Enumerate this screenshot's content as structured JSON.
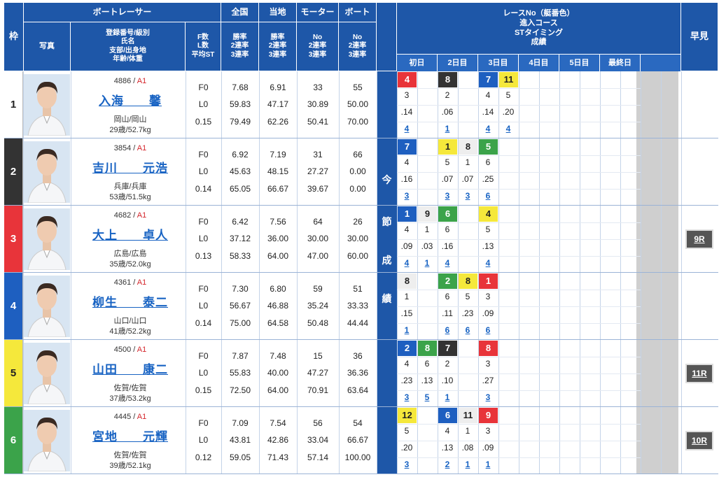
{
  "header": {
    "waku": "枠",
    "racer": "ボートレーサー",
    "photo": "写真",
    "profile": [
      "登録番号/級別",
      "氏名",
      "支部/出身地",
      "年齢/体重"
    ],
    "fl": [
      "F数",
      "L数",
      "平均ST"
    ],
    "zenkoku": "全国",
    "touchi": "当地",
    "motor": "モーター",
    "boat": "ボート",
    "rate3": [
      "勝率",
      "2連率",
      "3連率"
    ],
    "rateNo": [
      "No",
      "2連率",
      "3連率"
    ],
    "race_info": [
      "レースNo（艇番色）",
      "進入コース",
      "STタイミング",
      "成績"
    ],
    "days": [
      "初日",
      "2日目",
      "3日目",
      "4日目",
      "5日目",
      "最終日"
    ],
    "hayami": "早見",
    "konsetsu": [
      "今",
      "節",
      "成",
      "績"
    ]
  },
  "colors": {
    "header": "#1e57a8",
    "lane": [
      "#ffffff",
      "#333333",
      "#e8343a",
      "#1e5fc0",
      "#f5e83b",
      "#3ba34a"
    ]
  },
  "racers": [
    {
      "waku": "1",
      "reg": "4886",
      "class": "A1",
      "name": "入海　　馨",
      "area": "岡山/岡山",
      "age": "29歳/52.7kg",
      "f": "F0",
      "l": "L0",
      "st": "0.15",
      "zen": [
        "7.68",
        "59.83",
        "79.49"
      ],
      "tou": [
        "6.91",
        "47.17",
        "62.26"
      ],
      "motor": [
        "33",
        "30.89",
        "50.41"
      ],
      "boat": [
        "55",
        "50.00",
        "70.00"
      ],
      "hayami": ""
    },
    {
      "waku": "2",
      "reg": "3854",
      "class": "A1",
      "name": "吉川　　元浩",
      "area": "兵庫/兵庫",
      "age": "53歳/51.5kg",
      "f": "F0",
      "l": "L0",
      "st": "0.14",
      "zen": [
        "6.92",
        "45.63",
        "65.05"
      ],
      "tou": [
        "7.19",
        "48.15",
        "66.67"
      ],
      "motor": [
        "31",
        "27.27",
        "39.67"
      ],
      "boat": [
        "66",
        "0.00",
        "0.00"
      ],
      "hayami": ""
    },
    {
      "waku": "3",
      "reg": "4682",
      "class": "A1",
      "name": "大上　　卓人",
      "area": "広島/広島",
      "age": "35歳/52.0kg",
      "f": "F0",
      "l": "L0",
      "st": "0.13",
      "zen": [
        "6.42",
        "37.12",
        "58.33"
      ],
      "tou": [
        "7.56",
        "36.00",
        "64.00"
      ],
      "motor": [
        "64",
        "30.00",
        "47.00"
      ],
      "boat": [
        "26",
        "30.00",
        "60.00"
      ],
      "hayami": "9R"
    },
    {
      "waku": "4",
      "reg": "4361",
      "class": "A1",
      "name": "柳生　　泰二",
      "area": "山口/山口",
      "age": "41歳/52.2kg",
      "f": "F0",
      "l": "L0",
      "st": "0.14",
      "zen": [
        "7.30",
        "56.67",
        "75.00"
      ],
      "tou": [
        "6.80",
        "46.88",
        "64.58"
      ],
      "motor": [
        "59",
        "35.24",
        "50.48"
      ],
      "boat": [
        "51",
        "33.33",
        "44.44"
      ],
      "hayami": ""
    },
    {
      "waku": "5",
      "reg": "4500",
      "class": "A1",
      "name": "山田　　康二",
      "area": "佐賀/佐賀",
      "age": "37歳/53.2kg",
      "f": "F0",
      "l": "L0",
      "st": "0.15",
      "zen": [
        "7.87",
        "55.83",
        "72.50"
      ],
      "tou": [
        "7.48",
        "40.00",
        "64.00"
      ],
      "motor": [
        "15",
        "47.27",
        "70.91"
      ],
      "boat": [
        "36",
        "36.36",
        "63.64"
      ],
      "hayami": "11R"
    },
    {
      "waku": "6",
      "reg": "4445",
      "class": "A1",
      "name": "宮地　　元輝",
      "area": "佐賀/佐賀",
      "age": "39歳/52.1kg",
      "f": "F0",
      "l": "L0",
      "st": "0.12",
      "zen": [
        "7.09",
        "43.81",
        "59.05"
      ],
      "tou": [
        "7.54",
        "42.86",
        "71.43"
      ],
      "motor": [
        "56",
        "33.04",
        "57.14"
      ],
      "boat": [
        "54",
        "66.67",
        "100.00"
      ],
      "hayami": "10R"
    }
  ],
  "results": [
    [
      {
        "s": 0,
        "r": "4",
        "c": 3,
        "st": ".14",
        "p": "4"
      },
      {
        "s": 2,
        "r": "8",
        "c": 2,
        "st": ".06",
        "p": "1"
      },
      {
        "s": 4,
        "r": "7",
        "c": 4,
        "st": ".14",
        "p": "4"
      },
      {
        "s": 5,
        "r": "11",
        "c": 5,
        "st": ".20",
        "p": "4"
      }
    ],
    [
      {
        "s": 0,
        "r": "7",
        "c": 4,
        "st": ".16",
        "p": "3"
      },
      {
        "s": 2,
        "r": "1",
        "c": 5,
        "st": ".07",
        "p": "3"
      },
      {
        "s": 3,
        "r": "8",
        "c": 1,
        "st": ".07",
        "p": "3"
      },
      {
        "s": 4,
        "r": "5",
        "c": 6,
        "st": ".25",
        "p": "6"
      }
    ],
    [
      {
        "s": 0,
        "r": "1",
        "c": 4,
        "st": ".09",
        "p": "4"
      },
      {
        "s": 1,
        "r": "9",
        "c": 1,
        "st": ".03",
        "p": "1"
      },
      {
        "s": 2,
        "r": "6",
        "c": 6,
        "st": ".16",
        "p": "4"
      },
      {
        "s": 4,
        "r": "4",
        "c": 5,
        "st": ".13",
        "p": "4"
      }
    ],
    [
      {
        "s": 0,
        "r": "8",
        "c": 1,
        "st": ".15",
        "p": "1"
      },
      {
        "s": 2,
        "r": "2",
        "c": 6,
        "st": ".11",
        "p": "6"
      },
      {
        "s": 3,
        "r": "8",
        "c": 5,
        "st": ".23",
        "p": "6"
      },
      {
        "s": 4,
        "r": "1",
        "c": 3,
        "st": ".09",
        "p": "6"
      }
    ],
    [
      {
        "s": 0,
        "r": "2",
        "c": 4,
        "st": ".23",
        "p": "3"
      },
      {
        "s": 1,
        "r": "8",
        "c": 6,
        "st": ".13",
        "p": "5"
      },
      {
        "s": 2,
        "r": "7",
        "c": 2,
        "st": ".10",
        "p": "1"
      },
      {
        "s": 4,
        "r": "8",
        "c": 3,
        "st": ".27",
        "p": "3"
      }
    ],
    [
      {
        "s": 0,
        "r": "12",
        "c": 5,
        "st": ".20",
        "p": "3"
      },
      {
        "s": 2,
        "r": "6",
        "c": 4,
        "st": ".13",
        "p": "2"
      },
      {
        "s": 3,
        "r": "11",
        "c": 1,
        "st": ".08",
        "p": "1"
      },
      {
        "s": 4,
        "r": "9",
        "c": 3,
        "st": ".09",
        "p": "1"
      }
    ]
  ]
}
